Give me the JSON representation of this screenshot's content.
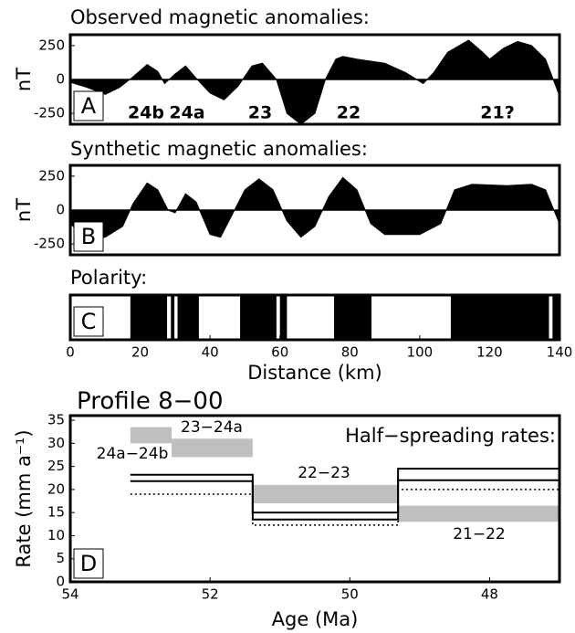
{
  "chart_data": [
    {
      "type": "area",
      "title": "Observed magnetic anomalies:",
      "panel_label": "A",
      "ylabel": "nT",
      "color": "#000000",
      "x": [
        0,
        5,
        10,
        14,
        18,
        22,
        25,
        27,
        30,
        33,
        36,
        40,
        44,
        48,
        52,
        55,
        59,
        62,
        66,
        70,
        73,
        76,
        78,
        82,
        90,
        96,
        101,
        104,
        108,
        114,
        118,
        120,
        124,
        128,
        132,
        136,
        140
      ],
      "values": [
        -20,
        -60,
        -110,
        -60,
        20,
        110,
        60,
        -30,
        40,
        100,
        10,
        -100,
        -150,
        -50,
        100,
        120,
        0,
        -250,
        -330,
        -250,
        0,
        150,
        170,
        150,
        120,
        50,
        -30,
        50,
        200,
        290,
        200,
        150,
        230,
        280,
        250,
        150,
        -120
      ],
      "xlim": [
        0,
        140
      ],
      "ylim": [
        -330,
        330
      ],
      "yticks": [
        -250,
        0,
        250
      ],
      "annotations": [
        "24b",
        "24a",
        "23",
        "22",
        "21?"
      ]
    },
    {
      "type": "area",
      "title": "Synthetic magnetic anomalies:",
      "panel_label": "B",
      "ylabel": "nT",
      "color": "#000000",
      "x": [
        0,
        5,
        10,
        15,
        18,
        22,
        25,
        28,
        30,
        33,
        36,
        40,
        43,
        46,
        50,
        54,
        58,
        62,
        66,
        70,
        74,
        78,
        82,
        86,
        90,
        100,
        106,
        110,
        115,
        125,
        132,
        136,
        140
      ],
      "values": [
        -100,
        -220,
        -200,
        -120,
        50,
        200,
        150,
        0,
        -20,
        120,
        60,
        -180,
        -200,
        -50,
        150,
        230,
        150,
        -80,
        -200,
        -120,
        100,
        240,
        150,
        -100,
        -180,
        -180,
        -100,
        150,
        190,
        180,
        190,
        150,
        -100
      ],
      "xlim": [
        0,
        140
      ],
      "ylim": [
        -330,
        330
      ],
      "yticks": [
        -250,
        0,
        250
      ]
    },
    {
      "type": "polarity",
      "title": "Polarity:",
      "panel_label": "C",
      "xlabel": "Distance (km)",
      "color": "#000000",
      "normal_start": [
        17.2,
        28.8,
        30.7,
        48.6,
        60,
        75.5,
        108.9,
        138
      ],
      "normal_end": [
        27.7,
        29.8,
        36.8,
        59,
        62,
        86.2,
        137,
        140
      ],
      "xlim": [
        0,
        140
      ],
      "xticks": [
        0,
        20,
        40,
        60,
        80,
        100,
        120,
        140
      ]
    },
    {
      "type": "step",
      "title": "Profile 8−00",
      "subtitle": "Half−spreading rates:",
      "panel_label": "D",
      "xlabel": "Age (Ma)",
      "ylabel": "Rate (mm a⁻¹)",
      "age_edges": [
        53.14,
        51.39,
        49.31,
        47
      ],
      "series": [
        {
          "color": "#000000",
          "dashed": false,
          "values": [
            23.2,
            15,
            24.5
          ]
        },
        {
          "color": "#000000",
          "dashed": false,
          "values": [
            21.8,
            13.5,
            22
          ]
        },
        {
          "color": "#000000",
          "dashed": true,
          "values": [
            19,
            12.3,
            20
          ]
        }
      ],
      "bands": [
        {
          "label": "24a−24b",
          "age": [
            53.14,
            52.55
          ],
          "rate": [
            30,
            33.5
          ]
        },
        {
          "label": "23−24a",
          "age": [
            52.55,
            51.39
          ],
          "rate": [
            27,
            31
          ]
        },
        {
          "label": "22−23",
          "age": [
            51.39,
            49.31
          ],
          "rate": [
            17,
            21
          ]
        },
        {
          "label": "21−22",
          "age": [
            49.31,
            47
          ],
          "rate": [
            13,
            16.5
          ]
        }
      ],
      "band_color": "#bfbfbf",
      "xlim": [
        54,
        47
      ],
      "ylim": [
        0,
        36
      ],
      "xticks": [
        54,
        52,
        50,
        48
      ],
      "yticks": [
        0,
        5,
        10,
        15,
        20,
        25,
        30,
        35
      ]
    }
  ]
}
